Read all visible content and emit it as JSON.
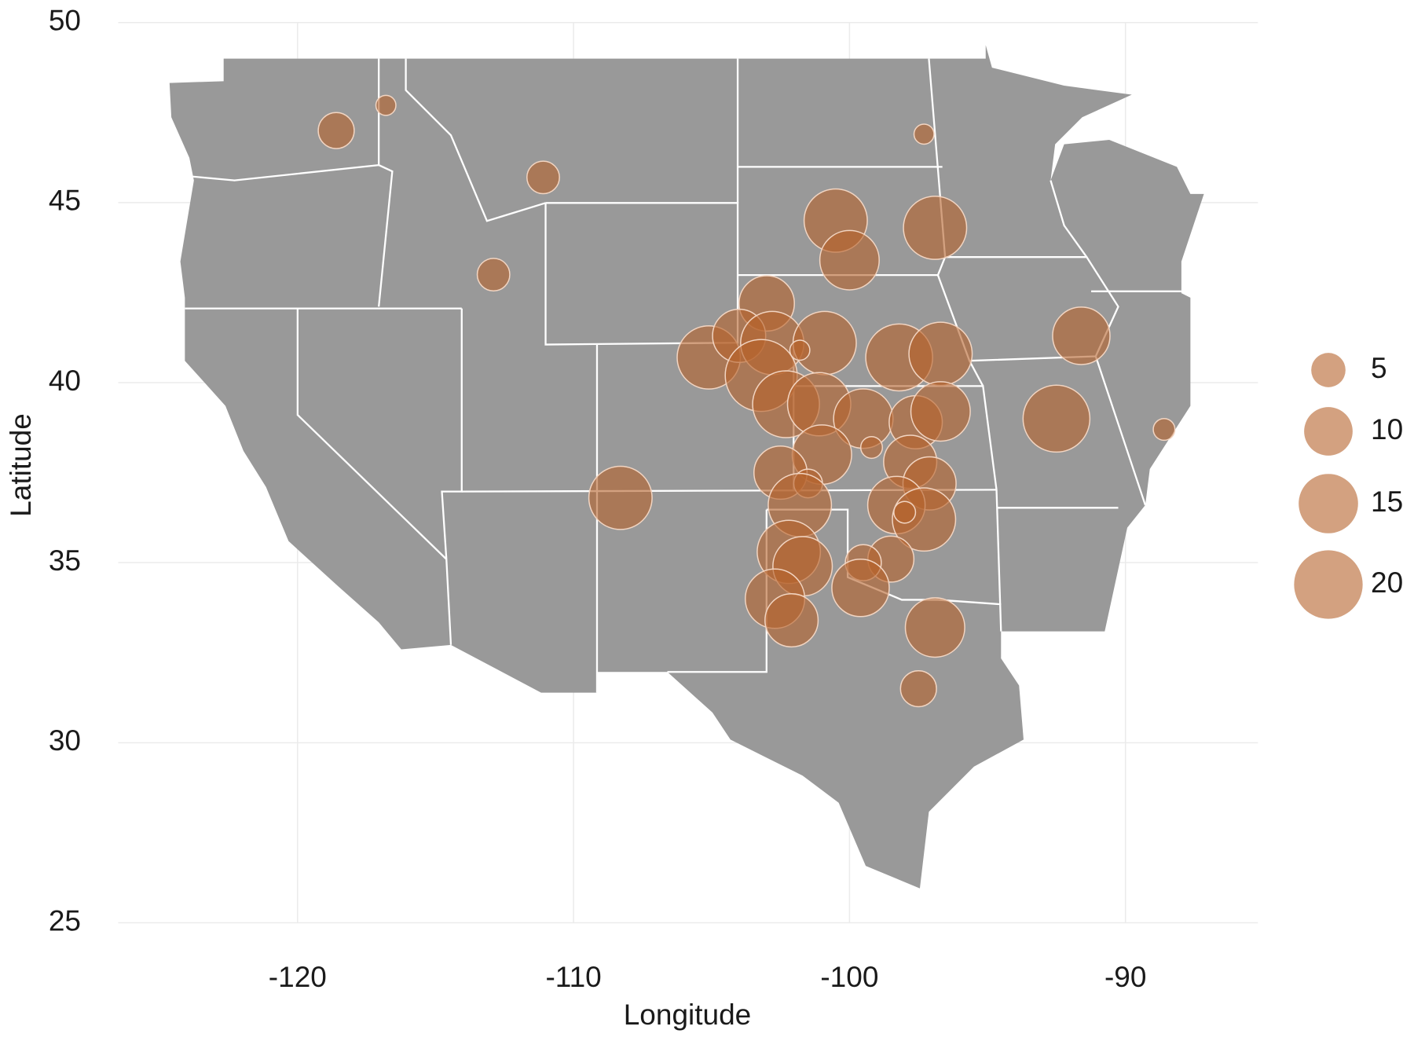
{
  "chart_data": {
    "type": "scatter",
    "x_label": "Longitude",
    "y_label": "Latitude",
    "x": [
      -118.6,
      -116.8,
      -111.1,
      -112.9,
      -97.3,
      -100.5,
      -96.9,
      -100.0,
      -103.0,
      -105.1,
      -104.0,
      -102.8,
      -100.9,
      -101.8,
      -103.2,
      -102.3,
      -101.1,
      -98.2,
      -96.7,
      -99.5,
      -97.6,
      -96.7,
      -92.5,
      -91.6,
      -88.6,
      -99.2,
      -101.0,
      -97.8,
      -97.1,
      -102.5,
      -101.5,
      -108.3,
      -101.8,
      -98.3,
      -97.3,
      -98.0,
      -102.2,
      -101.7,
      -98.5,
      -99.5,
      -99.6,
      -102.7,
      -102.1,
      -96.9,
      -97.5
    ],
    "values": [
      47.0,
      47.7,
      45.7,
      43.0,
      46.9,
      44.5,
      44.3,
      43.4,
      42.2,
      40.7,
      41.3,
      41.1,
      41.1,
      40.9,
      40.2,
      39.4,
      39.4,
      40.7,
      40.8,
      39.0,
      38.9,
      39.2,
      39.0,
      41.3,
      38.7,
      38.2,
      38.0,
      37.8,
      37.2,
      37.5,
      37.2,
      36.8,
      36.6,
      36.6,
      36.2,
      36.4,
      35.3,
      34.9,
      35.1,
      35.0,
      34.3,
      34.0,
      33.4,
      33.2,
      31.5
    ],
    "sizes": [
      5.5,
      1.7,
      4.5,
      4.5,
      1.7,
      17,
      17,
      15,
      13,
      17,
      12,
      17,
      17,
      1.7,
      22,
      19,
      17,
      19,
      17,
      15,
      12,
      15,
      19,
      14,
      2,
      2,
      15,
      12,
      12,
      12,
      3.5,
      17,
      17,
      14,
      17,
      2,
      17,
      15,
      9,
      5.5,
      14,
      15,
      12,
      15,
      5.5
    ],
    "color": "#b5622c",
    "size_legend": [
      5,
      10,
      15,
      20
    ],
    "xlim": [
      -126.5,
      -85.2
    ],
    "ylim": [
      25,
      50
    ],
    "xticks": [
      -120,
      -110,
      -100,
      -90
    ],
    "yticks": [
      25,
      30,
      35,
      40,
      45,
      50
    ],
    "grid": true
  }
}
